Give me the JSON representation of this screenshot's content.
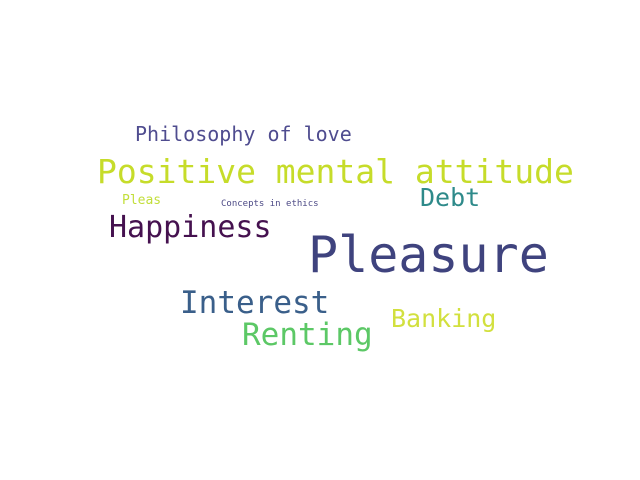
{
  "words": [
    {
      "text": "Philosophy of love",
      "color": "#4f4c8f"
    },
    {
      "text": "Positive mental attitude",
      "color": "#c6dc2a"
    },
    {
      "text": "Debt",
      "color": "#2e8a8a"
    },
    {
      "text": "Pleas",
      "color": "#c2de3a"
    },
    {
      "text": "Concepts in ethics",
      "color": "#4d4a86"
    },
    {
      "text": "Happiness",
      "color": "#45114f"
    },
    {
      "text": "Pleasure",
      "color": "#3f437e"
    },
    {
      "text": "Interest",
      "color": "#3a5f8a"
    },
    {
      "text": "Banking",
      "color": "#d2e03e"
    },
    {
      "text": "Renting",
      "color": "#5cc866"
    }
  ]
}
